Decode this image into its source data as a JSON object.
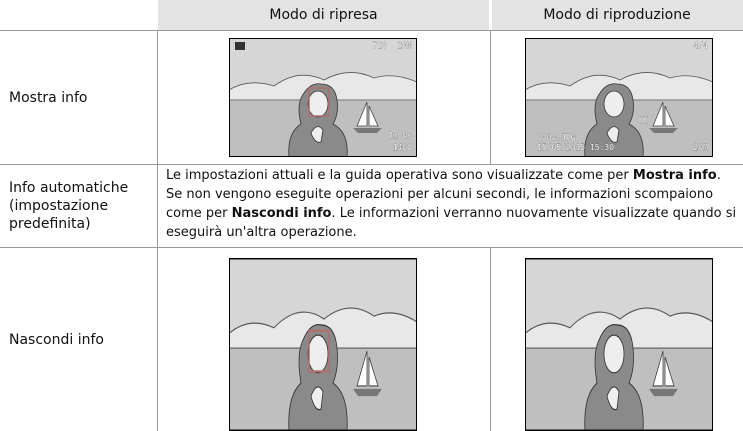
{
  "table": {
    "header": [
      "Modo di ripresa",
      "Modo di riproduzione"
    ],
    "rows": [
      {
        "label": "Mostra info",
        "shooting_overlay": [
          "720",
          "20M",
          "8m 0s",
          "1400"
        ],
        "playback_overlay": [
          "4/4",
          "0004.JPG",
          "15/05/2015 15:30",
          "OK",
          "20M"
        ]
      },
      {
        "label": "Info automatiche (impostazione predefinita)",
        "description": [
          {
            "text": "Le impostazioni attuali e la guida operativa sono visualizzate come per ",
            "bold": false
          },
          {
            "text": "Mostra info",
            "bold": true
          },
          {
            "text": ". Se non vengono eseguite operazioni per alcuni secondi, le informazioni scompaiono come per ",
            "bold": false
          },
          {
            "text": "Nascondi info",
            "bold": true
          },
          {
            "text": ". Le informazioni verranno nuovamente visualizzate quando si eseguirà un'altra operazione.",
            "bold": false
          }
        ]
      },
      {
        "label": "Nascondi info"
      }
    ]
  }
}
